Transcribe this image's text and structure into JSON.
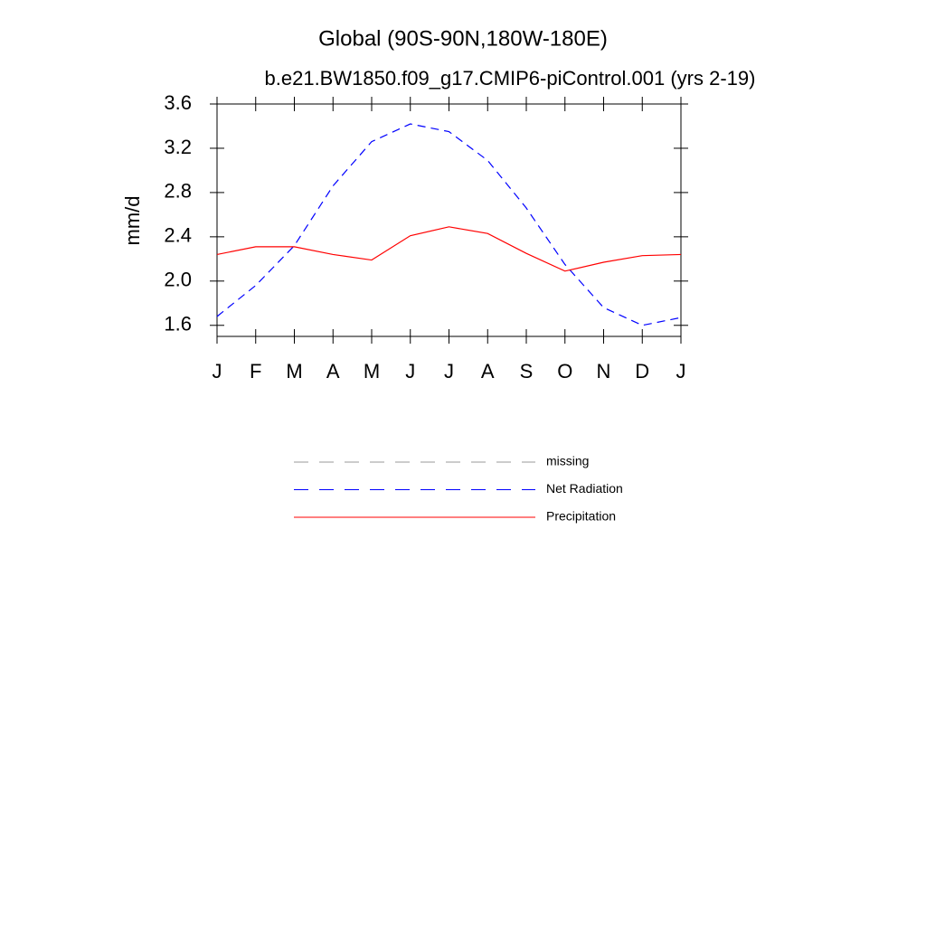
{
  "chart_data": {
    "type": "line",
    "title": "Global (90S-90N,180W-180E)",
    "subtitle": "b.e21.BW1850.f09_g17.CMIP6-piControl.001 (yrs 2-19)",
    "y_label": "mm/d",
    "categories": [
      "J",
      "F",
      "M",
      "A",
      "M",
      "J",
      "J",
      "A",
      "S",
      "O",
      "N",
      "D",
      "J"
    ],
    "ylim": [
      1.5,
      3.6
    ],
    "yticks": [
      {
        "value": 1.6,
        "label": "1.6"
      },
      {
        "value": 2,
        "label": "2.0"
      },
      2.4,
      2.8,
      3.2,
      3.6
    ],
    "series": [
      {
        "name": "missing",
        "color": "#999999",
        "dash": true,
        "values": [
          null,
          null,
          null,
          null,
          null,
          null,
          null,
          null,
          null,
          null,
          null,
          null,
          null
        ]
      },
      {
        "name": "Net Radiation",
        "color": "#0000ff",
        "dash": true,
        "values": [
          1.68,
          1.96,
          2.32,
          2.86,
          3.26,
          3.42,
          3.35,
          3.09,
          2.66,
          2.15,
          1.76,
          1.6,
          1.67
        ]
      },
      {
        "name": "Precipitation",
        "color": "#ff0000",
        "dash": false,
        "values": [
          2.24,
          2.31,
          2.31,
          2.24,
          2.19,
          2.41,
          2.49,
          2.43,
          2.25,
          2.09,
          2.17,
          2.23,
          2.24
        ]
      }
    ]
  }
}
